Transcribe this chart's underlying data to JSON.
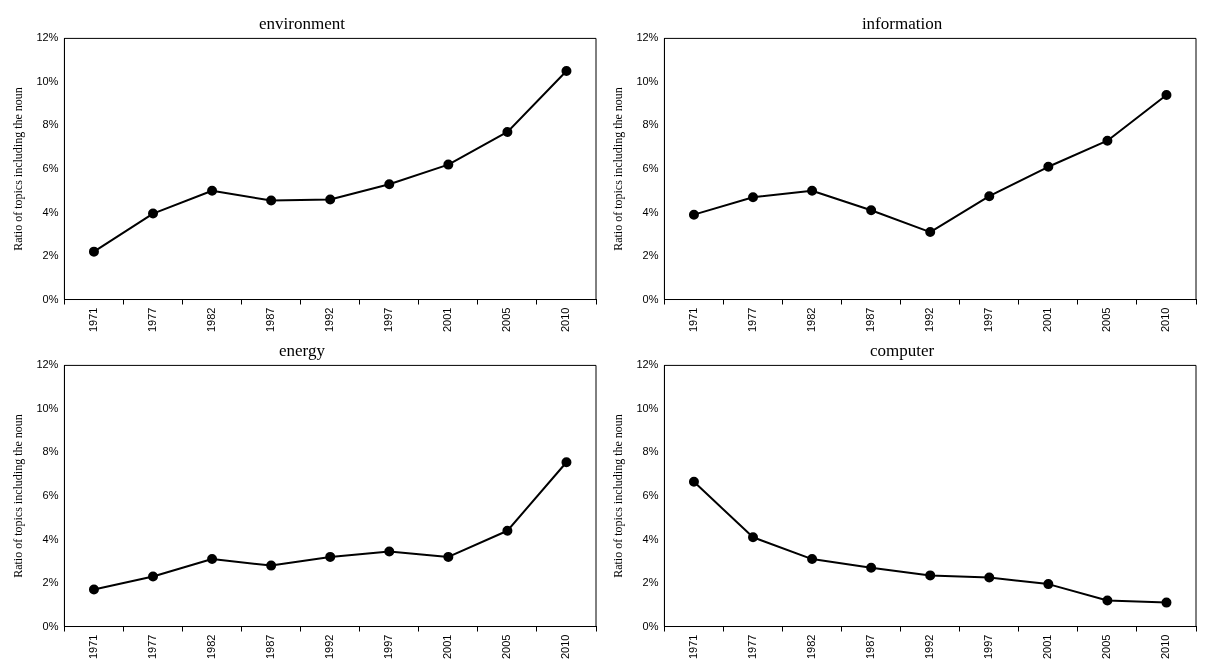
{
  "chart_data": [
    {
      "type": "line",
      "title": "environment",
      "ylabel": "Ratio of topics including the noun",
      "categories": [
        "1971",
        "1977",
        "1982",
        "1987",
        "1992",
        "1997",
        "2001",
        "2005",
        "2010"
      ],
      "ylim": [
        0,
        12
      ],
      "yticks": [
        {
          "value": 0,
          "label": "0%"
        },
        {
          "value": 2,
          "label": "2%"
        },
        {
          "value": 4,
          "label": "4%"
        },
        {
          "value": 6,
          "label": "6%"
        },
        {
          "value": 8,
          "label": "8%"
        },
        {
          "value": 10,
          "label": "10%"
        },
        {
          "value": 12,
          "label": "12%"
        }
      ],
      "marker": "circle",
      "line_style": "solid",
      "series": [
        {
          "color": "#000000",
          "values": [
            2.2,
            3.95,
            5.0,
            4.55,
            4.6,
            5.3,
            6.2,
            7.7,
            10.5
          ]
        }
      ]
    },
    {
      "type": "line",
      "title": "information",
      "ylabel": "Ratio of topics including the noun",
      "categories": [
        "1971",
        "1977",
        "1982",
        "1987",
        "1992",
        "1997",
        "2001",
        "2005",
        "2010"
      ],
      "ylim": [
        0,
        12
      ],
      "yticks": [
        {
          "value": 0,
          "label": "0%"
        },
        {
          "value": 2,
          "label": "2%"
        },
        {
          "value": 4,
          "label": "4%"
        },
        {
          "value": 6,
          "label": "6%"
        },
        {
          "value": 8,
          "label": "8%"
        },
        {
          "value": 10,
          "label": "10%"
        },
        {
          "value": 12,
          "label": "12%"
        }
      ],
      "marker": "circle",
      "line_style": "solid",
      "series": [
        {
          "color": "#000000",
          "values": [
            3.9,
            4.7,
            5.0,
            4.1,
            3.1,
            4.75,
            6.1,
            7.3,
            9.4
          ]
        }
      ]
    },
    {
      "type": "line",
      "title": "energy",
      "ylabel": "Ratio of topics including the noun",
      "categories": [
        "1971",
        "1977",
        "1982",
        "1987",
        "1992",
        "1997",
        "2001",
        "2005",
        "2010"
      ],
      "ylim": [
        0,
        12
      ],
      "yticks": [
        {
          "value": 0,
          "label": "0%"
        },
        {
          "value": 2,
          "label": "2%"
        },
        {
          "value": 4,
          "label": "4%"
        },
        {
          "value": 6,
          "label": "6%"
        },
        {
          "value": 8,
          "label": "8%"
        },
        {
          "value": 10,
          "label": "10%"
        },
        {
          "value": 12,
          "label": "12%"
        }
      ],
      "marker": "circle",
      "line_style": "solid",
      "series": [
        {
          "color": "#000000",
          "values": [
            1.7,
            2.3,
            3.1,
            2.8,
            3.2,
            3.45,
            3.2,
            4.4,
            7.55
          ]
        }
      ]
    },
    {
      "type": "line",
      "title": "computer",
      "ylabel": "Ratio of topics including the noun",
      "categories": [
        "1971",
        "1977",
        "1982",
        "1987",
        "1992",
        "1997",
        "2001",
        "2005",
        "2010"
      ],
      "ylim": [
        0,
        12
      ],
      "yticks": [
        {
          "value": 0,
          "label": "0%"
        },
        {
          "value": 2,
          "label": "2%"
        },
        {
          "value": 4,
          "label": "4%"
        },
        {
          "value": 6,
          "label": "6%"
        },
        {
          "value": 8,
          "label": "8%"
        },
        {
          "value": 10,
          "label": "10%"
        },
        {
          "value": 12,
          "label": "12%"
        }
      ],
      "marker": "circle",
      "line_style": "solid",
      "series": [
        {
          "color": "#000000",
          "values": [
            6.65,
            4.1,
            3.1,
            2.7,
            2.35,
            2.25,
            1.95,
            1.2,
            1.1
          ]
        }
      ]
    }
  ]
}
